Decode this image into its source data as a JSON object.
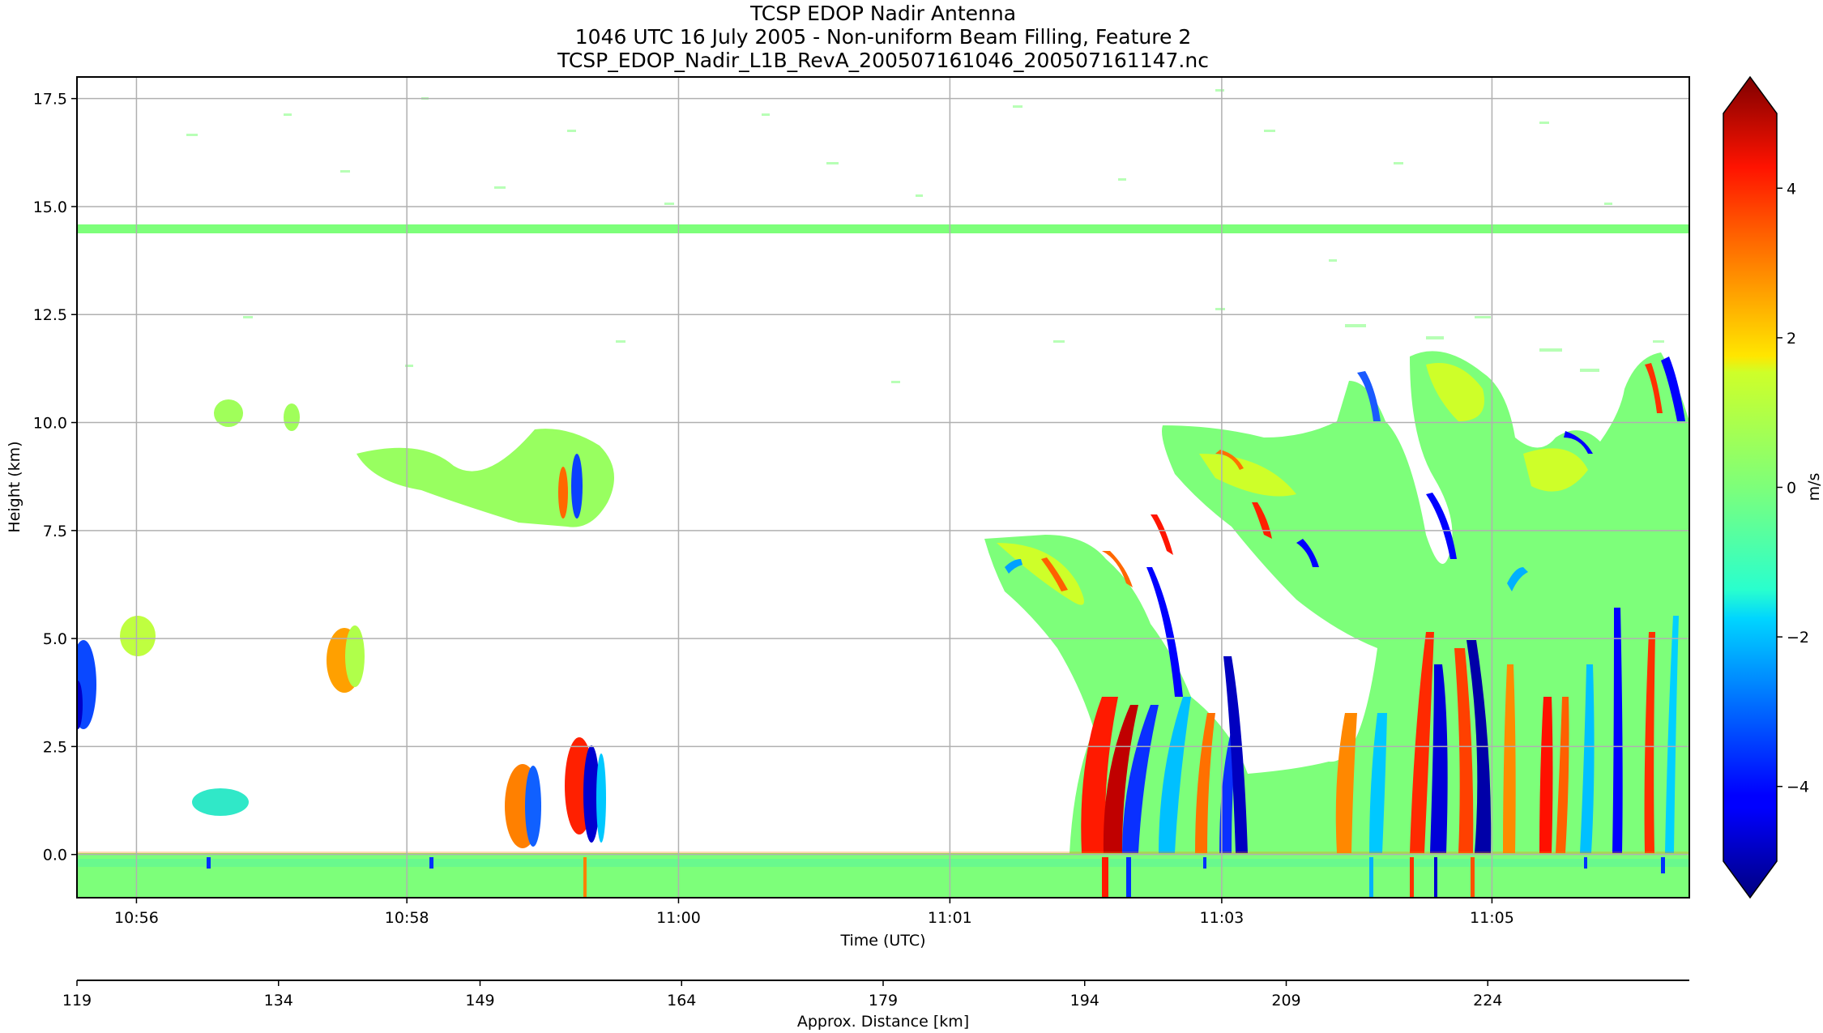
{
  "chart_data": {
    "type": "heatmap",
    "title_lines": [
      "TCSP EDOP Nadir Antenna",
      "1046 UTC 16 July 2005 - Non-uniform Beam Filling, Feature 2",
      "TCSP_EDOP_Nadir_L1B_RevA_200507161046_200507161147.nc"
    ],
    "xlabel": "Time (UTC)",
    "x_ticks": [
      "10:56",
      "10:58",
      "11:00",
      "11:01",
      "11:03",
      "11:05"
    ],
    "ylabel": "Height (km)",
    "ylim": [
      -1.0,
      18.0
    ],
    "y_ticks": [
      0.0,
      2.5,
      5.0,
      7.5,
      10.0,
      12.5,
      15.0,
      17.5
    ],
    "y_tick_labels": [
      "0.0",
      "2.5",
      "5.0",
      "7.5",
      "10.0",
      "12.5",
      "15.0",
      "17.5"
    ],
    "secondary_xlabel": "Approx. Distance [km]",
    "secondary_x_ticks": [
      "119",
      "134",
      "149",
      "164",
      "179",
      "194",
      "209",
      "224"
    ],
    "colorbar": {
      "label": "m/s",
      "range": [
        -5,
        5
      ],
      "ticks": [
        -4,
        -2,
        0,
        2,
        4
      ],
      "tick_labels": [
        "−4",
        "−2",
        "0",
        "2",
        "4"
      ],
      "colormap": "jet",
      "extend": "both"
    },
    "grid": true,
    "features": [
      {
        "name": "noise band",
        "height_km": 14.4,
        "value_ms": 0
      },
      {
        "name": "surface return",
        "height_range_km": [
          -1.0,
          0.0
        ],
        "value_ms": 0
      }
    ]
  },
  "colors": {
    "grid": "#b0b0b0",
    "frame": "#000000",
    "background": "#ffffff"
  }
}
